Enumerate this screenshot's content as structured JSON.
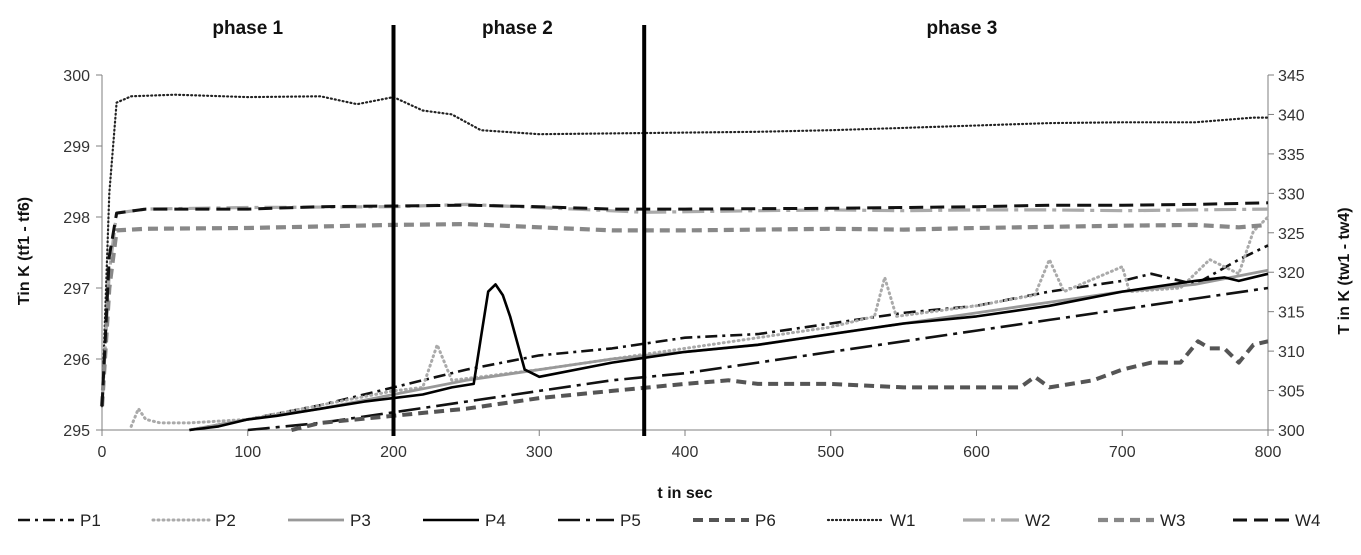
{
  "chart_data": {
    "type": "line",
    "xlabel": "t in sec",
    "ylabel": "Tin K (tf1 - tf6)",
    "y2label": "T in K (tw1 - tw4)",
    "xlim": [
      0,
      800
    ],
    "ylim": [
      295,
      300
    ],
    "y2lim": [
      300,
      345
    ],
    "xticks": [
      "0",
      "100",
      "200",
      "300",
      "400",
      "500",
      "600",
      "700",
      "800"
    ],
    "yticks": [
      "295",
      "296",
      "297",
      "298",
      "299",
      "300"
    ],
    "y2ticks": [
      "300",
      "305",
      "310",
      "315",
      "320",
      "325",
      "330",
      "335",
      "340",
      "345"
    ],
    "grid": false,
    "legend_position": "bottom",
    "phases": [
      {
        "label": "phase 1",
        "center": 100
      },
      {
        "label": "phase 2",
        "center": 285
      },
      {
        "label": "phase 3",
        "center": 590
      }
    ],
    "phase_boundaries": [
      200,
      372
    ],
    "series": [
      {
        "name": "P1",
        "axis": "left",
        "color": "#111111",
        "style": "dashdot",
        "x": [
          60,
          100,
          150,
          200,
          250,
          300,
          350,
          400,
          450,
          500,
          550,
          600,
          650,
          700,
          720,
          750,
          780,
          800
        ],
        "y": [
          295.0,
          295.15,
          295.35,
          295.6,
          295.85,
          296.05,
          296.15,
          296.3,
          296.35,
          296.5,
          296.65,
          296.75,
          296.95,
          297.1,
          297.2,
          297.05,
          297.4,
          297.6
        ]
      },
      {
        "name": "P2",
        "axis": "left",
        "color": "#aaaaaa",
        "style": "dotted",
        "x": [
          20,
          25,
          30,
          40,
          60,
          100,
          150,
          200,
          220,
          230,
          240,
          260,
          300,
          350,
          400,
          450,
          500,
          530,
          537,
          545,
          600,
          640,
          650,
          660,
          700,
          705,
          740,
          760,
          780,
          790,
          800
        ],
        "y": [
          295.05,
          295.3,
          295.15,
          295.1,
          295.1,
          295.15,
          295.35,
          295.55,
          295.6,
          296.2,
          295.7,
          295.75,
          295.85,
          296.0,
          296.15,
          296.3,
          296.45,
          296.6,
          297.15,
          296.6,
          296.75,
          296.9,
          297.4,
          296.95,
          297.3,
          296.95,
          297.0,
          297.4,
          297.2,
          297.8,
          298.0
        ]
      },
      {
        "name": "P3",
        "axis": "left",
        "color": "#999999",
        "style": "solid",
        "x": [
          60,
          100,
          150,
          200,
          250,
          300,
          350,
          400,
          450,
          500,
          550,
          600,
          650,
          700,
          750,
          800
        ],
        "y": [
          295.0,
          295.15,
          295.3,
          295.5,
          295.7,
          295.85,
          296.0,
          296.1,
          296.2,
          296.35,
          296.5,
          296.65,
          296.8,
          296.95,
          297.05,
          297.25
        ]
      },
      {
        "name": "P4",
        "axis": "left",
        "color": "#000000",
        "style": "solid",
        "x": [
          60,
          80,
          100,
          120,
          150,
          180,
          200,
          220,
          240,
          255,
          260,
          265,
          270,
          275,
          280,
          290,
          300,
          350,
          400,
          450,
          500,
          550,
          600,
          650,
          700,
          750,
          770,
          780,
          800
        ],
        "y": [
          295.0,
          295.05,
          295.15,
          295.2,
          295.3,
          295.4,
          295.45,
          295.5,
          295.6,
          295.65,
          296.3,
          296.95,
          297.05,
          296.9,
          296.6,
          295.85,
          295.75,
          295.95,
          296.1,
          296.2,
          296.35,
          296.5,
          296.6,
          296.75,
          296.95,
          297.1,
          297.15,
          297.1,
          297.2
        ]
      },
      {
        "name": "P5",
        "axis": "left",
        "color": "#111111",
        "style": "longdashdot",
        "x": [
          100,
          150,
          200,
          250,
          300,
          350,
          400,
          450,
          500,
          550,
          600,
          650,
          700,
          750,
          800
        ],
        "y": [
          295.0,
          295.1,
          295.25,
          295.4,
          295.55,
          295.7,
          295.8,
          295.95,
          296.1,
          296.25,
          296.4,
          296.55,
          296.7,
          296.85,
          297.0
        ]
      },
      {
        "name": "P6",
        "axis": "left",
        "color": "#555555",
        "style": "thickdash",
        "x": [
          130,
          150,
          200,
          250,
          300,
          350,
          400,
          430,
          450,
          500,
          550,
          600,
          630,
          640,
          650,
          680,
          700,
          720,
          740,
          752,
          760,
          770,
          780,
          790,
          800
        ],
        "y": [
          295.0,
          295.1,
          295.2,
          295.3,
          295.45,
          295.55,
          295.65,
          295.7,
          295.65,
          295.65,
          295.6,
          295.6,
          295.6,
          295.75,
          295.6,
          295.7,
          295.85,
          295.95,
          295.95,
          296.25,
          296.15,
          296.15,
          295.95,
          296.2,
          296.25
        ]
      },
      {
        "name": "W1",
        "axis": "right",
        "color": "#222222",
        "style": "finedot",
        "x": [
          0,
          5,
          10,
          20,
          50,
          100,
          150,
          175,
          200,
          220,
          240,
          260,
          300,
          350,
          400,
          450,
          500,
          550,
          600,
          650,
          700,
          750,
          790,
          800
        ],
        "y": [
          303.0,
          330.0,
          341.5,
          342.3,
          342.5,
          342.2,
          342.3,
          341.3,
          342.2,
          340.5,
          340.0,
          338.0,
          337.5,
          337.6,
          337.7,
          337.8,
          338.0,
          338.3,
          338.6,
          338.9,
          339.0,
          339.0,
          339.6,
          339.6
        ]
      },
      {
        "name": "W2",
        "axis": "right",
        "color": "#aaaaaa",
        "style": "longdashdot",
        "x": [
          0,
          5,
          10,
          30,
          100,
          200,
          250,
          300,
          372,
          450,
          500,
          550,
          600,
          650,
          700,
          750,
          800
        ],
        "y": [
          303.0,
          320.0,
          327.5,
          328.0,
          328.2,
          328.3,
          328.6,
          328.2,
          327.6,
          327.8,
          327.9,
          327.8,
          327.9,
          327.9,
          327.8,
          327.9,
          328.0
        ]
      },
      {
        "name": "W3",
        "axis": "right",
        "color": "#888888",
        "style": "thickdash",
        "x": [
          0,
          5,
          10,
          30,
          100,
          200,
          250,
          300,
          350,
          400,
          500,
          550,
          600,
          700,
          750,
          780,
          800
        ],
        "y": [
          303.0,
          318.0,
          325.3,
          325.5,
          325.6,
          326.0,
          326.1,
          325.7,
          325.3,
          325.3,
          325.5,
          325.4,
          325.6,
          325.9,
          326.0,
          325.7,
          326.0
        ]
      },
      {
        "name": "W4",
        "axis": "right",
        "color": "#111111",
        "style": "dash",
        "x": [
          0,
          5,
          10,
          30,
          100,
          150,
          200,
          250,
          300,
          350,
          400,
          500,
          550,
          600,
          650,
          700,
          750,
          800
        ],
        "y": [
          303.0,
          322.0,
          327.5,
          328.0,
          328.0,
          328.3,
          328.4,
          328.5,
          328.3,
          328.0,
          328.0,
          328.1,
          328.2,
          328.3,
          328.5,
          328.5,
          328.6,
          328.8
        ]
      }
    ]
  }
}
